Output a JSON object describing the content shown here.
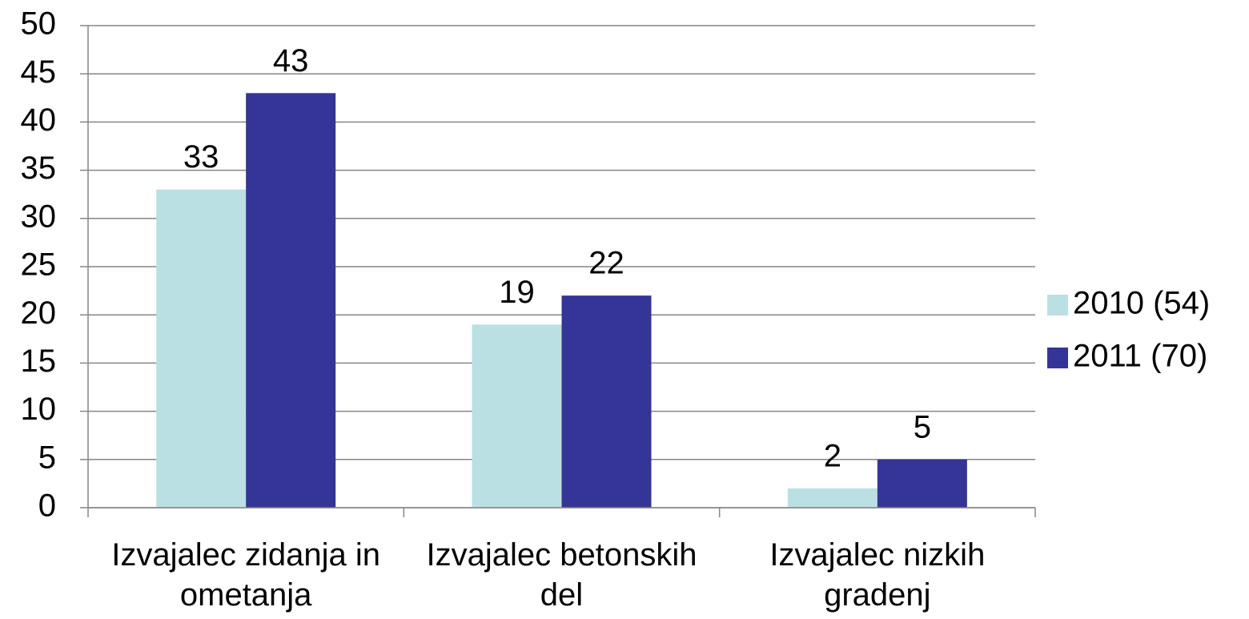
{
  "chart_data": {
    "type": "bar",
    "categories": [
      "Izvajalec zidanja in ometanja",
      "Izvajalec betonskih del",
      "Izvajalec nizkih gradenj"
    ],
    "series": [
      {
        "name": "2010 (54)",
        "color": "#bbe0e3",
        "values": [
          33,
          19,
          2
        ]
      },
      {
        "name": "2011 (70)",
        "color": "#353598",
        "values": [
          43,
          22,
          5
        ]
      }
    ],
    "ylim": [
      0,
      50
    ],
    "yticks": [
      0,
      5,
      10,
      15,
      20,
      25,
      30,
      35,
      40,
      45,
      50
    ],
    "grid": true,
    "legend": "right"
  }
}
